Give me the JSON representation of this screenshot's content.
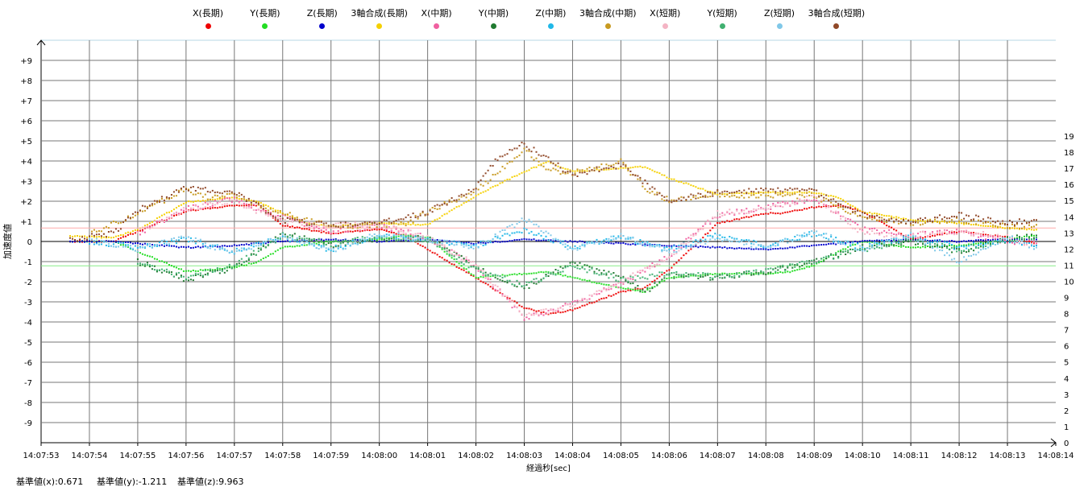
{
  "legend": [
    {
      "name": "X(長期)",
      "color": "#ee0000"
    },
    {
      "name": "Y(長期)",
      "color": "#22dd22"
    },
    {
      "name": "Z(長期)",
      "color": "#0000cc"
    },
    {
      "name": "3軸合成(長期)",
      "color": "#f5d000"
    },
    {
      "name": "X(中期)",
      "color": "#f060a0"
    },
    {
      "name": "Y(中期)",
      "color": "#207a30"
    },
    {
      "name": "Z(中期)",
      "color": "#20b8e8"
    },
    {
      "name": "3軸合成(中期)",
      "color": "#c89a20"
    },
    {
      "name": "X(短期)",
      "color": "#f4b4c4"
    },
    {
      "name": "Y(短期)",
      "color": "#40b070"
    },
    {
      "name": "Z(短期)",
      "color": "#80c8e8"
    },
    {
      "name": "3軸合成(短期)",
      "color": "#904828"
    }
  ],
  "footer": {
    "base_x": "基準値(x):0.671",
    "base_y": "基準値(y):-1.211",
    "base_z": "基準値(z):9.963"
  },
  "chart_data": {
    "type": "scatter",
    "xlabel": "経過秒[sec]",
    "ylabel": "加速度値",
    "x_ticks": [
      "14:07:53",
      "14:07:54",
      "14:07:55",
      "14:07:56",
      "14:07:57",
      "14:07:58",
      "14:07:59",
      "14:08:00",
      "14:08:01",
      "14:08:02",
      "14:08:03",
      "14:08:04",
      "14:08:05",
      "14:08:06",
      "14:08:07",
      "14:08:08",
      "14:08:09",
      "14:08:10",
      "14:08:11",
      "14:08:12",
      "14:08:13",
      "14:08:14"
    ],
    "y_ticks": [
      "+9",
      "+8",
      "+7",
      "+6",
      "+5",
      "+4",
      "+3",
      "+2",
      "+1",
      "0",
      "-1",
      "-2",
      "-3",
      "-4",
      "-5",
      "-6",
      "-7",
      "-8",
      "-9"
    ],
    "y2_ticks": [
      "19",
      "18",
      "17",
      "16",
      "15",
      "14",
      "13",
      "12",
      "11",
      "10",
      "9",
      "8",
      "7",
      "6",
      "5",
      "4",
      "3",
      "2",
      "1",
      "0"
    ],
    "xlim": [
      0,
      21
    ],
    "ylim": [
      -10,
      10
    ],
    "y2lim": [
      0,
      19
    ],
    "x_unit_note": "x values are seconds after 14:07:53",
    "reference_lines": [
      {
        "label": "基準値(x)",
        "y": 0.671,
        "color": "#ffaaaa"
      },
      {
        "label": "基準値(y)",
        "y": -1.211,
        "color": "#88ee88"
      }
    ],
    "series": [
      {
        "name": "X(長期)",
        "axis": "left",
        "color": "#ee0000",
        "x": [
          0.6,
          1.5,
          2,
          3,
          4,
          4.5,
          5,
          6,
          7,
          7.5,
          8,
          9,
          10,
          10.5,
          11,
          12,
          12.5,
          13,
          14,
          14.8,
          15,
          15.3,
          16,
          16.5,
          17,
          18,
          19,
          20,
          20.6
        ],
        "y": [
          0,
          0,
          0.5,
          1.5,
          1.8,
          1.8,
          0.8,
          0.4,
          0.6,
          0.3,
          -0.4,
          -1.8,
          -3.3,
          -3.6,
          -3.4,
          -2.5,
          -2.3,
          -1.4,
          0.9,
          1.3,
          1.4,
          1.4,
          1.7,
          1.8,
          1.5,
          0.1,
          0.5,
          0.2,
          -0.1
        ]
      },
      {
        "name": "Y(長期)",
        "axis": "left",
        "color": "#22dd22",
        "x": [
          0.6,
          1.5,
          2,
          3,
          4,
          4.5,
          5,
          6,
          7,
          7.5,
          8,
          9,
          10,
          10.5,
          11,
          12,
          12.5,
          13,
          14,
          15,
          15.5,
          16,
          16.5,
          17,
          18,
          19,
          20,
          20.6
        ],
        "y": [
          0,
          0,
          -0.5,
          -1.5,
          -1.3,
          -1.0,
          -0.3,
          0,
          0.1,
          0.3,
          0.2,
          -1.8,
          -1.6,
          -1.5,
          -1.8,
          -2.3,
          -2.5,
          -1.8,
          -1.6,
          -1.6,
          -1.5,
          -1.2,
          -0.5,
          0,
          -0.3,
          -0.2,
          0.1,
          0.3
        ]
      },
      {
        "name": "Z(長期)",
        "axis": "left",
        "color": "#0000cc",
        "x": [
          0.6,
          1.5,
          2,
          3,
          4,
          5,
          6,
          7,
          8,
          9,
          10,
          11,
          12,
          13,
          14,
          15,
          16,
          17,
          18,
          19,
          20,
          20.6
        ],
        "y": [
          0,
          0,
          -0.1,
          -0.3,
          -0.2,
          0,
          0.1,
          0,
          0.1,
          -0.1,
          0.1,
          0,
          -0.1,
          -0.2,
          -0.3,
          -0.4,
          -0.2,
          0,
          0.1,
          0,
          0.1,
          0.1
        ]
      },
      {
        "name": "3軸合成(長期)",
        "axis": "right",
        "color": "#f5d000",
        "x": [
          0.6,
          1.5,
          2,
          3,
          4,
          4.5,
          5,
          5.5,
          6,
          7,
          8,
          9,
          10,
          10.5,
          11,
          12,
          12.5,
          13,
          14,
          15,
          15.5,
          16,
          16.5,
          17,
          18,
          19,
          20,
          20.6
        ],
        "y": [
          12.8,
          12.7,
          13.2,
          14.9,
          15.2,
          14.9,
          14.2,
          13.6,
          13.4,
          13.6,
          13.5,
          15.3,
          16.8,
          17.4,
          16.8,
          17.0,
          17.1,
          16.4,
          15.4,
          15.5,
          15.5,
          15.5,
          15.2,
          14.3,
          13.8,
          13.6,
          13.3,
          13.2
        ]
      },
      {
        "name": "X(中期)",
        "axis": "left",
        "color": "#f060a0",
        "x": [
          2,
          3,
          4,
          5,
          6,
          7,
          8,
          9,
          9.5,
          10,
          11,
          12,
          13,
          14,
          15,
          16,
          17,
          18,
          19,
          20,
          20.6
        ],
        "y": [
          0.4,
          1.6,
          2.1,
          1.2,
          0.5,
          0.8,
          0.2,
          -1.3,
          -2.5,
          -3.8,
          -3.1,
          -2.1,
          -0.7,
          1.3,
          1.7,
          2.1,
          0.6,
          0.3,
          0.5,
          0,
          -0.1
        ]
      },
      {
        "name": "Y(中期)",
        "axis": "left",
        "color": "#207a30",
        "x": [
          2,
          3,
          3.5,
          4,
          5,
          6,
          7,
          8,
          9,
          10,
          11,
          12,
          12.5,
          13,
          14,
          15,
          16,
          17,
          18,
          19,
          20,
          20.6
        ],
        "y": [
          -1.0,
          -1.9,
          -1.6,
          -1.3,
          0.4,
          -0.2,
          0.1,
          0.2,
          -1.3,
          -2.3,
          -1.1,
          -1.8,
          -2.5,
          -1.7,
          -1.8,
          -1.5,
          -1.0,
          -0.3,
          0,
          -0.5,
          0.1,
          0.3
        ]
      },
      {
        "name": "Z(中期)",
        "axis": "left",
        "color": "#20b8e8",
        "x": [
          1,
          2,
          3,
          4,
          5,
          6,
          7,
          8,
          9,
          10,
          11,
          12,
          13,
          14,
          15,
          16,
          17,
          18,
          19,
          20,
          20.6
        ],
        "y": [
          0,
          -0.3,
          0.1,
          -0.5,
          0.2,
          -0.4,
          0.3,
          0.1,
          -0.2,
          0.6,
          -0.3,
          0.2,
          -0.4,
          0.3,
          -0.2,
          0.4,
          -0.3,
          0.2,
          -0.3,
          0.1,
          -0.2
        ]
      },
      {
        "name": "3軸合成(中期)",
        "axis": "right",
        "color": "#c89a20",
        "x": [
          1,
          2,
          3,
          3.5,
          4,
          5,
          6,
          7,
          7.5,
          8,
          9,
          10,
          10.5,
          11,
          12,
          12.5,
          13,
          14,
          15,
          16,
          17,
          18,
          19,
          20,
          20.6
        ],
        "y": [
          12.9,
          14.2,
          15.7,
          15.2,
          15.3,
          14.2,
          13.4,
          13.5,
          13.5,
          14.3,
          15.6,
          18.2,
          16.9,
          16.7,
          17.4,
          15.8,
          15.0,
          15.4,
          15.3,
          15.3,
          14.0,
          13.6,
          13.8,
          13.4,
          13.5
        ]
      },
      {
        "name": "X(短期)",
        "axis": "left",
        "color": "#f4b4c4",
        "x": [
          2,
          3,
          4,
          5,
          6,
          7,
          8,
          9,
          10,
          11,
          12,
          13,
          14,
          15,
          16,
          17,
          18,
          19,
          20,
          20.6
        ],
        "y": [
          0.5,
          1.6,
          2.0,
          1.0,
          0.8,
          0.9,
          0.2,
          -1.2,
          -3.7,
          -3.2,
          -2.0,
          -0.8,
          1.4,
          1.6,
          2.2,
          0.4,
          0.3,
          0.5,
          0.2,
          -0.3
        ]
      },
      {
        "name": "Y(短期)",
        "axis": "left",
        "color": "#40b070",
        "x": [
          2,
          3,
          4,
          5,
          6,
          7,
          8,
          9,
          10,
          11,
          12,
          13,
          14,
          15,
          16,
          17,
          18,
          19,
          20,
          20.6
        ],
        "y": [
          -1.1,
          -1.8,
          -1.2,
          0.3,
          -0.1,
          0.2,
          0.1,
          -1.4,
          -2.2,
          -1.2,
          -1.9,
          -1.6,
          -1.7,
          -1.5,
          -1.0,
          -0.4,
          0.1,
          -0.4,
          0.1,
          0.2
        ]
      },
      {
        "name": "Z(短期)",
        "axis": "left",
        "color": "#80c8e8",
        "x": [
          1,
          2,
          3,
          4,
          5,
          6,
          7,
          8,
          9,
          10,
          11,
          12,
          13,
          14,
          15,
          16,
          17,
          18,
          19,
          20,
          20.6
        ],
        "y": [
          0.1,
          -0.4,
          0.2,
          -0.6,
          0.3,
          -0.5,
          0.4,
          0.1,
          -0.3,
          1.1,
          -0.4,
          0.3,
          -0.5,
          0.2,
          -0.3,
          0.5,
          -0.4,
          0.3,
          -1.0,
          0.2,
          -0.3
        ]
      },
      {
        "name": "3軸合成(短期)",
        "axis": "right",
        "color": "#904828",
        "x": [
          0.6,
          1.5,
          2,
          3,
          4,
          5,
          6,
          7,
          8,
          9,
          9.5,
          10,
          11,
          12,
          13,
          14,
          15,
          16,
          17,
          18,
          19,
          20,
          20.6
        ],
        "y": [
          12.6,
          13.0,
          14.4,
          15.8,
          15.5,
          13.8,
          13.5,
          13.6,
          14.3,
          15.8,
          17.8,
          18.5,
          16.6,
          17.2,
          15.0,
          15.5,
          15.7,
          15.6,
          14.1,
          13.7,
          14.1,
          13.6,
          13.8
        ]
      }
    ]
  }
}
